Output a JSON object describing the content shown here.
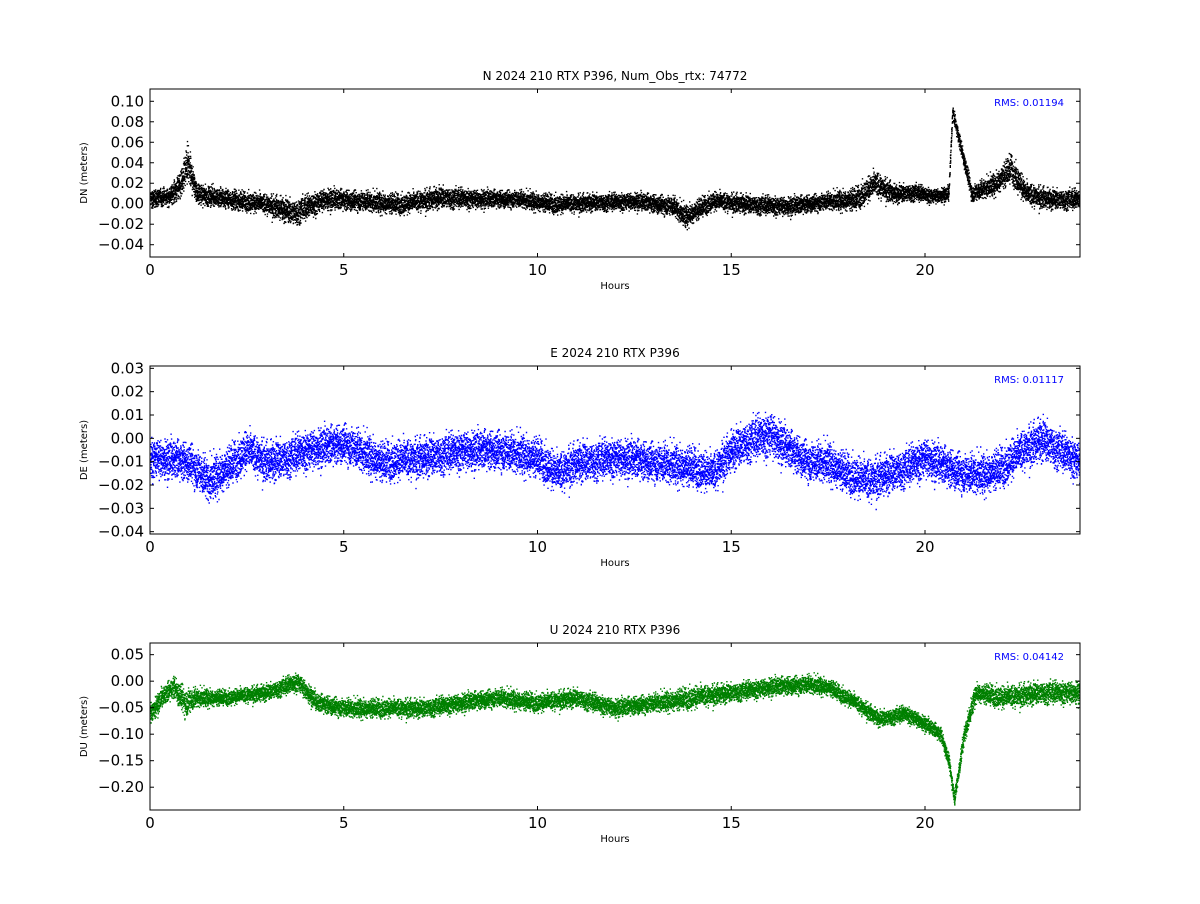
{
  "chart_data": [
    {
      "type": "scatter",
      "title": "N 2024 210 RTX  P396, Num_Obs_rtx: 74772",
      "xlabel": "Hours",
      "ylabel": "DN (meters)",
      "xlim": [
        0,
        24
      ],
      "ylim": [
        -0.052,
        0.112
      ],
      "x_ticks": [
        0,
        5,
        10,
        15,
        20
      ],
      "x_tick_labels": [
        "0",
        "5",
        "10",
        "15",
        "20"
      ],
      "y_ticks": [
        -0.04,
        -0.02,
        0.0,
        0.02,
        0.04,
        0.06,
        0.08,
        0.1
      ],
      "y_tick_labels": [
        "−0.04",
        "−0.02",
        "0.00",
        "0.02",
        "0.04",
        "0.06",
        "0.08",
        "0.10"
      ],
      "color": "#000000",
      "grid": false,
      "annotation": "RMS:  0.01194",
      "annotation_color": "#0000ff",
      "series": [
        {
          "x": [
            0,
            0.5,
            0.8,
            0.95,
            1.2,
            2,
            3,
            3.7,
            4.5,
            5.5,
            6.5,
            7.5,
            8.5,
            9.5,
            10.5,
            11.5,
            12.5,
            13.5,
            13.8,
            14.5,
            15.5,
            16.5,
            17.5,
            18.2,
            18.7,
            19.2,
            19.7,
            20.2,
            20.6,
            20.7,
            21.2,
            21.8,
            22.2,
            22.6,
            23.2,
            24
          ],
          "center": [
            0.005,
            0.008,
            0.02,
            0.04,
            0.01,
            0.005,
            0.0,
            -0.008,
            0.005,
            0.003,
            0.0,
            0.007,
            0.005,
            0.005,
            0.0,
            0.002,
            0.003,
            -0.002,
            -0.012,
            0.003,
            0.0,
            -0.002,
            0.003,
            0.005,
            0.02,
            0.01,
            0.012,
            0.008,
            0.01,
            0.09,
            0.01,
            0.02,
            0.035,
            0.01,
            0.005,
            0.005
          ],
          "spread": [
            0.012,
            0.012,
            0.02,
            0.03,
            0.014,
            0.013,
            0.014,
            0.018,
            0.015,
            0.014,
            0.014,
            0.015,
            0.013,
            0.012,
            0.013,
            0.012,
            0.012,
            0.014,
            0.015,
            0.013,
            0.013,
            0.013,
            0.012,
            0.016,
            0.018,
            0.013,
            0.012,
            0.01,
            0.01,
            0.01,
            0.012,
            0.015,
            0.02,
            0.016,
            0.014,
            0.014
          ]
        }
      ]
    },
    {
      "type": "scatter",
      "title": "E 2024 210 RTX  P396",
      "xlabel": "Hours",
      "ylabel": "DE (meters)",
      "xlim": [
        0,
        24
      ],
      "ylim": [
        -0.041,
        0.031
      ],
      "x_ticks": [
        0,
        5,
        10,
        15,
        20
      ],
      "x_tick_labels": [
        "0",
        "5",
        "10",
        "15",
        "20"
      ],
      "y_ticks": [
        -0.04,
        -0.03,
        -0.02,
        -0.01,
        0.0,
        0.01,
        0.02,
        0.03
      ],
      "y_tick_labels": [
        "−0.04",
        "−0.03",
        "−0.02",
        "−0.01",
        "0.00",
        "0.01",
        "0.02",
        "0.03"
      ],
      "color": "#0000ff",
      "grid": false,
      "annotation": "RMS:  0.01117",
      "annotation_color": "#0000ff",
      "series": [
        {
          "x": [
            0,
            1,
            1.5,
            2,
            2.5,
            3,
            3.5,
            4,
            5,
            6,
            7,
            8,
            9,
            10,
            10.5,
            11,
            12,
            13,
            14,
            14.5,
            15,
            15.5,
            16,
            16.5,
            17,
            17.5,
            18,
            18.5,
            19,
            19.5,
            20,
            20.5,
            21,
            21.5,
            22,
            22.5,
            23,
            23.5,
            24
          ],
          "center": [
            -0.008,
            -0.01,
            -0.018,
            -0.012,
            -0.005,
            -0.01,
            -0.008,
            -0.005,
            -0.002,
            -0.01,
            -0.008,
            -0.005,
            -0.005,
            -0.008,
            -0.015,
            -0.01,
            -0.008,
            -0.01,
            -0.012,
            -0.015,
            -0.005,
            0.0,
            0.002,
            -0.005,
            -0.01,
            -0.01,
            -0.015,
            -0.018,
            -0.015,
            -0.012,
            -0.008,
            -0.012,
            -0.015,
            -0.015,
            -0.012,
            -0.005,
            0.0,
            -0.005,
            -0.01
          ],
          "spread": [
            0.012,
            0.012,
            0.013,
            0.012,
            0.012,
            0.012,
            0.012,
            0.012,
            0.012,
            0.012,
            0.012,
            0.012,
            0.012,
            0.012,
            0.012,
            0.012,
            0.012,
            0.012,
            0.012,
            0.012,
            0.012,
            0.013,
            0.014,
            0.012,
            0.012,
            0.012,
            0.012,
            0.013,
            0.012,
            0.012,
            0.012,
            0.012,
            0.012,
            0.012,
            0.012,
            0.012,
            0.013,
            0.012,
            0.012
          ]
        }
      ]
    },
    {
      "type": "scatter",
      "title": "U 2024 210 RTX  P396",
      "xlabel": "Hours",
      "ylabel": "DU (meters)",
      "xlim": [
        0,
        24
      ],
      "ylim": [
        -0.243,
        0.072
      ],
      "x_ticks": [
        0,
        5,
        10,
        15,
        20
      ],
      "x_tick_labels": [
        "0",
        "5",
        "10",
        "15",
        "20"
      ],
      "y_ticks": [
        -0.2,
        -0.15,
        -0.1,
        -0.05,
        0.0,
        0.05
      ],
      "y_tick_labels": [
        "−0.20",
        "−0.15",
        "−0.10",
        "−0.05",
        "0.00",
        "0.05"
      ],
      "color": "#008000",
      "grid": false,
      "annotation": "RMS:  0.04142",
      "annotation_color": "#0000ff",
      "series": [
        {
          "x": [
            0,
            0.3,
            0.6,
            0.9,
            1.2,
            2,
            3,
            3.8,
            4.3,
            5,
            6,
            7,
            8,
            9,
            10,
            11,
            12,
            13,
            14,
            15,
            16,
            17,
            17.5,
            18.2,
            18.8,
            19.5,
            20,
            20.4,
            20.6,
            20.75,
            21,
            21.3,
            22,
            23,
            24
          ],
          "center": [
            -0.06,
            -0.03,
            -0.01,
            -0.04,
            -0.03,
            -0.03,
            -0.02,
            0.0,
            -0.04,
            -0.05,
            -0.05,
            -0.05,
            -0.04,
            -0.03,
            -0.04,
            -0.03,
            -0.05,
            -0.04,
            -0.03,
            -0.02,
            -0.01,
            -0.005,
            -0.01,
            -0.04,
            -0.07,
            -0.06,
            -0.08,
            -0.1,
            -0.15,
            -0.22,
            -0.1,
            -0.02,
            -0.03,
            -0.02,
            -0.02
          ],
          "spread": [
            0.03,
            0.025,
            0.03,
            0.04,
            0.025,
            0.02,
            0.022,
            0.025,
            0.025,
            0.025,
            0.025,
            0.025,
            0.025,
            0.025,
            0.025,
            0.025,
            0.025,
            0.025,
            0.03,
            0.025,
            0.025,
            0.025,
            0.022,
            0.022,
            0.022,
            0.022,
            0.02,
            0.02,
            0.02,
            0.02,
            0.025,
            0.025,
            0.03,
            0.03,
            0.03
          ]
        }
      ]
    }
  ]
}
